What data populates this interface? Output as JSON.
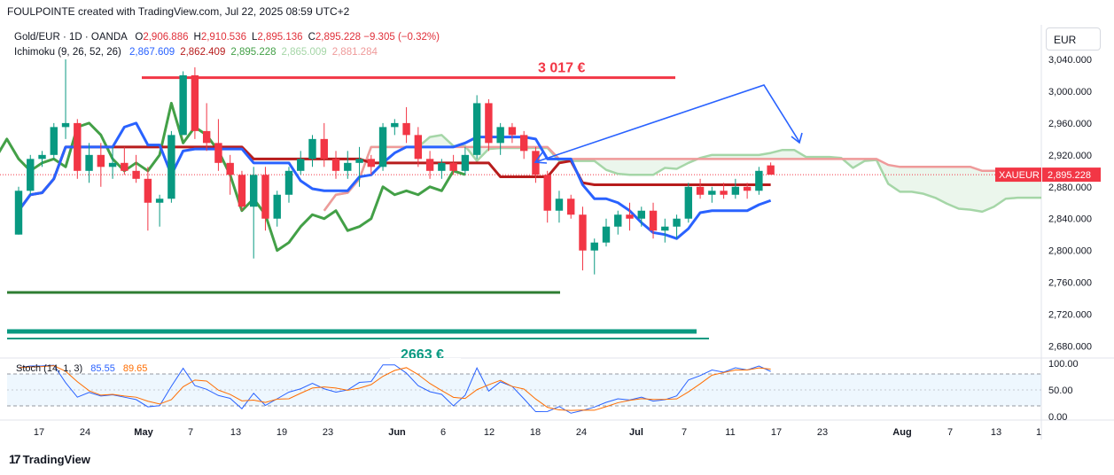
{
  "header": {
    "title": "FOULPOINTE created with TradingView.com, Jul 22, 2025 08:59 UTC+2"
  },
  "legend": {
    "symbol": "Gold/EUR · 1D · OANDA",
    "ohlc": [
      {
        "k": "O",
        "v": "2,906.886"
      },
      {
        "k": "H",
        "v": "2,910.536"
      },
      {
        "k": "L",
        "v": "2,895.136"
      },
      {
        "k": "C",
        "v": "2,895.228"
      }
    ],
    "change": "−9.305 (−0.32%)",
    "ichimoku_label": "Ichimoku (9, 26, 52, 26)",
    "ichimoku_values": [
      {
        "v": "2,867.609",
        "color": "#2962ff"
      },
      {
        "v": "2,862.409",
        "color": "#b71c1c"
      },
      {
        "v": "2,895.228",
        "color": "#43a047"
      },
      {
        "v": "2,865.009",
        "color": "#a5d6a7"
      },
      {
        "v": "2,881.284",
        "color": "#ef9a9a"
      }
    ]
  },
  "currency": "EUR",
  "price_axis": {
    "labels": [
      "3,040.000",
      "3,000.000",
      "2,960.000",
      "2,920.000",
      "2,880.000",
      "2,840.000",
      "2,800.000",
      "2,760.000",
      "2,720.000",
      "2,680.000"
    ],
    "values": [
      3040,
      3000,
      2960,
      2920,
      2880,
      2840,
      2800,
      2760,
      2720,
      2680
    ]
  },
  "price_tag": {
    "symbol": "XAUEUR",
    "value": "2,895.228",
    "color": "#f23645"
  },
  "annotations": {
    "resistance_label": "3 017 €",
    "resistance_price": 3017,
    "support_label": "2663 €",
    "support_price": 2663
  },
  "stoch": {
    "label": "Stoch (14, 1, 3)",
    "k_value": "85.55",
    "d_value": "89.65",
    "k_color": "#2962ff",
    "d_color": "#ff6d00",
    "axis_labels": [
      "100.00",
      "50.00",
      "0.00"
    ],
    "axis_values": [
      100,
      50,
      0
    ]
  },
  "time_axis": {
    "labels": [
      "17",
      "24",
      "May",
      "7",
      "13",
      "19",
      "23",
      "Jun",
      "6",
      "12",
      "18",
      "24",
      "Jul",
      "7",
      "11",
      "17",
      "23",
      "Aug",
      "7",
      "13",
      "1"
    ]
  },
  "footer": {
    "brand": "TradingView",
    "logo": "17"
  },
  "chart_data": {
    "type": "candlestick",
    "title": "Gold/EUR · 1D · OANDA",
    "ylim": [
      2665,
      3050
    ],
    "candles": [
      [
        2820,
        2880,
        2820,
        2875
      ],
      [
        2875,
        2920,
        2870,
        2915
      ],
      [
        2915,
        2925,
        2905,
        2920
      ],
      [
        2920,
        2960,
        2915,
        2955
      ],
      [
        2955,
        3040,
        2940,
        2960
      ],
      [
        2960,
        2965,
        2890,
        2900
      ],
      [
        2900,
        2935,
        2885,
        2920
      ],
      [
        2920,
        2935,
        2880,
        2905
      ],
      [
        2905,
        2930,
        2890,
        2910
      ],
      [
        2910,
        2930,
        2895,
        2900
      ],
      [
        2900,
        2920,
        2885,
        2890
      ],
      [
        2890,
        2905,
        2825,
        2860
      ],
      [
        2860,
        2870,
        2830,
        2865
      ],
      [
        2865,
        2950,
        2860,
        2945
      ],
      [
        2945,
        3025,
        2945,
        3020
      ],
      [
        3020,
        3030,
        2940,
        2950
      ],
      [
        2950,
        2985,
        2925,
        2935
      ],
      [
        2935,
        2965,
        2900,
        2910
      ],
      [
        2910,
        2920,
        2870,
        2895
      ],
      [
        2895,
        2900,
        2850,
        2855
      ],
      [
        2855,
        2905,
        2790,
        2895
      ],
      [
        2895,
        2905,
        2825,
        2840
      ],
      [
        2840,
        2875,
        2830,
        2870
      ],
      [
        2870,
        2905,
        2860,
        2900
      ],
      [
        2900,
        2925,
        2895,
        2915
      ],
      [
        2915,
        2945,
        2905,
        2940
      ],
      [
        2940,
        2960,
        2905,
        2915
      ],
      [
        2915,
        2925,
        2890,
        2900
      ],
      [
        2900,
        2925,
        2890,
        2910
      ],
      [
        2910,
        2930,
        2880,
        2915
      ],
      [
        2915,
        2920,
        2895,
        2905
      ],
      [
        2905,
        2960,
        2900,
        2955
      ],
      [
        2955,
        2965,
        2945,
        2960
      ],
      [
        2960,
        2980,
        2935,
        2945
      ],
      [
        2945,
        2955,
        2905,
        2915
      ],
      [
        2915,
        2925,
        2890,
        2900
      ],
      [
        2900,
        2915,
        2890,
        2910
      ],
      [
        2910,
        2920,
        2895,
        2900
      ],
      [
        2900,
        2930,
        2895,
        2920
      ],
      [
        2920,
        2995,
        2915,
        2985
      ],
      [
        2985,
        2990,
        2925,
        2935
      ],
      [
        2935,
        2960,
        2920,
        2955
      ],
      [
        2955,
        2960,
        2935,
        2945
      ],
      [
        2945,
        2950,
        2915,
        2925
      ],
      [
        2925,
        2930,
        2885,
        2895
      ],
      [
        2895,
        2900,
        2835,
        2850
      ],
      [
        2850,
        2875,
        2835,
        2865
      ],
      [
        2865,
        2870,
        2840,
        2845
      ],
      [
        2845,
        2855,
        2775,
        2800
      ],
      [
        2800,
        2815,
        2770,
        2810
      ],
      [
        2810,
        2840,
        2805,
        2830
      ],
      [
        2830,
        2850,
        2820,
        2845
      ],
      [
        2845,
        2860,
        2825,
        2840
      ],
      [
        2840,
        2855,
        2830,
        2850
      ],
      [
        2850,
        2860,
        2815,
        2825
      ],
      [
        2825,
        2840,
        2810,
        2830
      ],
      [
        2830,
        2845,
        2815,
        2840
      ],
      [
        2840,
        2885,
        2835,
        2880
      ],
      [
        2880,
        2890,
        2865,
        2870
      ],
      [
        2870,
        2880,
        2860,
        2875
      ],
      [
        2875,
        2885,
        2865,
        2870
      ],
      [
        2870,
        2890,
        2865,
        2880
      ],
      [
        2880,
        2885,
        2865,
        2875
      ],
      [
        2875,
        2905,
        2870,
        2900
      ],
      [
        2906.886,
        2910.536,
        2895.136,
        2895.228
      ]
    ],
    "levels": [
      {
        "label": "3 017 €",
        "price": 3017
      },
      {
        "label": "2663 €",
        "price": 2663
      }
    ],
    "ichimoku": {
      "params": [
        9,
        26,
        52,
        26
      ]
    },
    "stochastic": {
      "params": [
        14,
        1,
        3
      ],
      "k_last": 85.55,
      "d_last": 89.65,
      "ylim": [
        0,
        100
      ]
    }
  }
}
